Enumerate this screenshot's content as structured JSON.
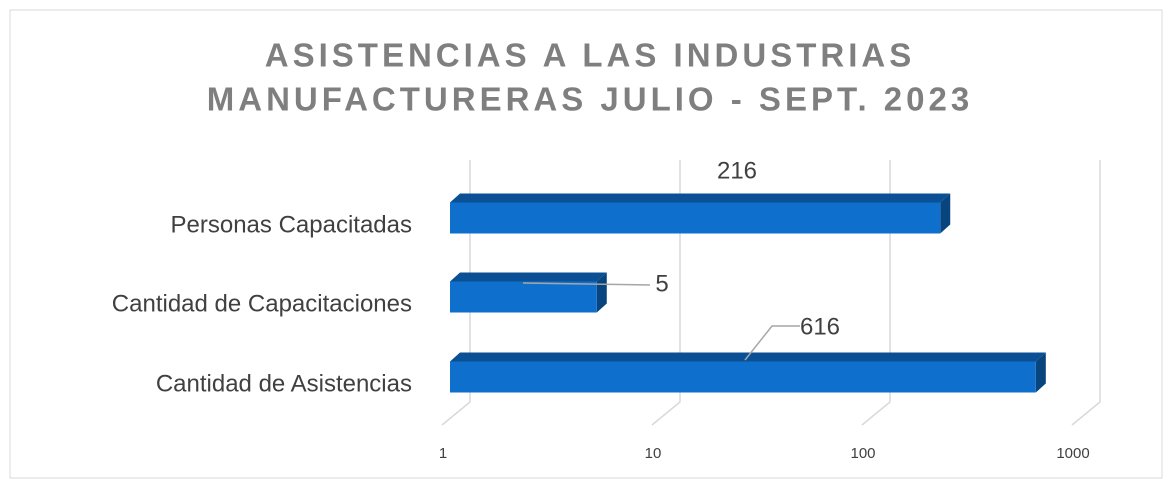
{
  "chart_data": {
    "type": "bar",
    "orientation": "horizontal",
    "title": [
      "ASISTENCIAS A LAS INDUSTRIAS",
      "MANUFACTURERAS JULIO - SEPT. 2023"
    ],
    "categories": [
      "Personas Capacitadas",
      "Cantidad de Capacitaciones",
      "Cantidad de Asistencias"
    ],
    "values": [
      216,
      5,
      616
    ],
    "color": "#0f6fcc",
    "xlim": [
      1,
      1000
    ],
    "xticks": [
      1,
      10,
      100,
      1000
    ],
    "xscale": "log",
    "grid": true
  }
}
